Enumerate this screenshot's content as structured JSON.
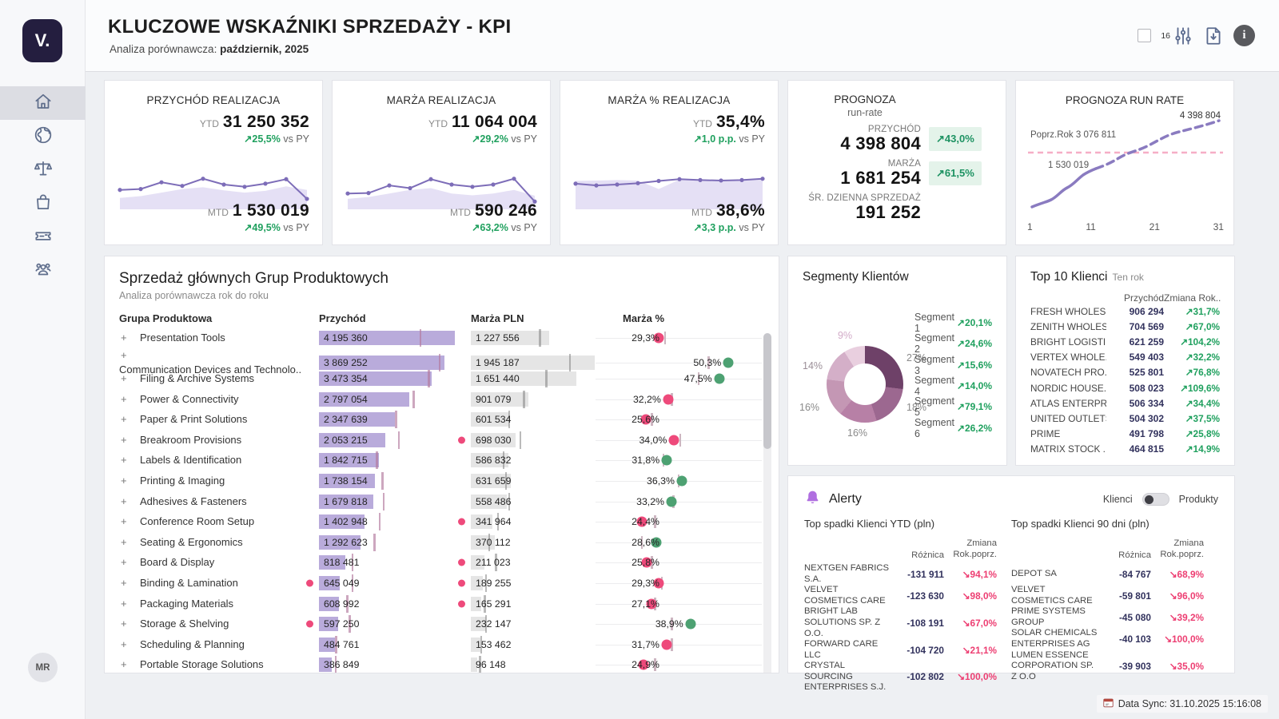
{
  "header": {
    "title": "KLUCZOWE WSKAŹNIKI SPRZEDAŻY - KPI",
    "subtitle_prefix": "Analiza porównawcza: ",
    "subtitle_value": "październik, 2025",
    "filter_badge": "16"
  },
  "sidebar": {
    "logo_text": "V.",
    "avatar_initials": "MR"
  },
  "kpi_cards": [
    {
      "title": "PRZYCHÓD REALIZACJA",
      "ytd_label": "YTD",
      "ytd_value": "31 250 352",
      "ytd_change": "↗25,5%",
      "ytd_vs": "vs PY",
      "mtd_label": "MTD",
      "mtd_value": "1 530 019",
      "mtd_change": "↗49,5%",
      "mtd_vs": "vs PY",
      "spark_line": [
        38,
        40,
        55,
        47,
        63,
        50,
        45,
        52,
        62,
        18
      ],
      "spark_area": [
        20,
        24,
        32,
        40,
        44,
        37,
        32,
        36,
        46,
        38
      ]
    },
    {
      "title": "MARŻA REALIZACJA",
      "ytd_label": "YTD",
      "ytd_value": "11 064 004",
      "ytd_change": "↗29,2%",
      "ytd_vs": "vs PY",
      "mtd_label": "MTD",
      "mtd_value": "590 246",
      "mtd_change": "↗63,2%",
      "mtd_vs": "vs PY",
      "spark_line": [
        30,
        31,
        48,
        42,
        62,
        50,
        45,
        50,
        63,
        12
      ],
      "spark_area": [
        18,
        22,
        30,
        38,
        42,
        30,
        26,
        30,
        38,
        25
      ]
    },
    {
      "title": "MARŻA % REALIZACJA",
      "ytd_label": "YTD",
      "ytd_value": "35,4%",
      "ytd_change": "↗1,0 p.p.",
      "ytd_vs": "vs PY",
      "mtd_label": "MTD",
      "mtd_value": "38,6%",
      "mtd_change": "↗3,3 p.p.",
      "mtd_vs": "vs PY",
      "spark_line": [
        52,
        48,
        50,
        53,
        58,
        62,
        60,
        59,
        60,
        63
      ],
      "spark_area": [
        58,
        59,
        60,
        59,
        40,
        61,
        59,
        58,
        59,
        61
      ]
    }
  ],
  "forecast": {
    "title": "PROGNOZA",
    "subtitle": "run-rate",
    "rows": [
      {
        "label": "PRZYCHÓD",
        "value": "4 398 804",
        "badge": "↗43,0%"
      },
      {
        "label": "MARŻA",
        "value": "1 681 254",
        "badge": "↗61,5%"
      },
      {
        "label": "ŚR. DZIENNA SPRZEDAŻ",
        "value": "191 252",
        "badge": null
      }
    ]
  },
  "runrate": {
    "title": "PROGNOZA RUN RATE",
    "prev_year_label": "Poprz.Rok 3 076 811",
    "current_label": "1 530 019",
    "forecast_label": "4 398 804",
    "x_ticks": [
      "1",
      "11",
      "21",
      "31"
    ]
  },
  "product_table": {
    "title": "Sprzedaż głównych Grup Produktowych",
    "subtitle": "Analiza porównawcza rok do roku",
    "columns": [
      "Grupa Produktowa",
      "Przychód",
      "Marża PLN",
      "Marża %"
    ],
    "max_revenue": 4195360,
    "max_margin": 1945187,
    "pct_min": 20,
    "pct_max": 56,
    "rows": [
      {
        "name": "Presentation Tools",
        "revenue": "4 195 360",
        "rev_py": 0.74,
        "margin": "1 227 556",
        "mar_py": 0.55,
        "pct": "29,3%",
        "pct_val": 29.3,
        "pct_py": 31,
        "pct_color": "pink"
      },
      {
        "name": "Communication Devices and Technolo..",
        "revenue": "3 869 252",
        "rev_py": 0.88,
        "margin": "1 945 187",
        "mar_py": 0.79,
        "pct": "50,3%",
        "pct_val": 50.3,
        "pct_py": 44,
        "pct_color": "green"
      },
      {
        "name": "Filing & Archive Systems",
        "revenue": "3 473 354",
        "rev_py": 0.8,
        "margin": "1 651 440",
        "mar_py": 0.6,
        "pct": "47,5%",
        "pct_val": 47.5,
        "pct_py": 41,
        "pct_color": "green"
      },
      {
        "name": "Power & Connectivity",
        "revenue": "2 797 054",
        "rev_py": 0.69,
        "margin": "901 079",
        "mar_py": 0.42,
        "pct": "32,2%",
        "pct_val": 32.2,
        "pct_py": 33,
        "pct_color": "pink"
      },
      {
        "name": "Paper & Print Solutions",
        "revenue": "2 347 639",
        "rev_py": 0.56,
        "margin": "601 534",
        "mar_py": 0.3,
        "pct": "25,6%",
        "pct_val": 25.6,
        "pct_py": 27,
        "pct_color": "pink"
      },
      {
        "name": "Breakroom Provisions",
        "revenue": "2 053 215",
        "rev_py": 0.58,
        "margin": "698 030",
        "mar_alert": true,
        "mar_py": 0.39,
        "pct": "34,0%",
        "pct_val": 34.0,
        "pct_py": 35.5,
        "pct_color": "pink"
      },
      {
        "name": "Labels & Identification",
        "revenue": "1 842 715",
        "rev_py": 0.42,
        "margin": "586 832",
        "mar_py": 0.255,
        "pct": "31,8%",
        "pct_val": 31.8,
        "pct_py": 30.5,
        "pct_color": "green"
      },
      {
        "name": "Printing & Imaging",
        "revenue": "1 738 154",
        "rev_py": 0.46,
        "margin": "631 659",
        "mar_py": 0.275,
        "pct": "36,3%",
        "pct_val": 36.3,
        "pct_py": 35,
        "pct_color": "green"
      },
      {
        "name": "Adhesives & Fasteners",
        "revenue": "1 679 818",
        "rev_py": 0.47,
        "margin": "558 486",
        "mar_py": 0.3,
        "pct": "33,2%",
        "pct_val": 33.2,
        "pct_py": 33.5,
        "pct_color": "green"
      },
      {
        "name": "Conference Room Setup",
        "revenue": "1 402 948",
        "rev_py": 0.44,
        "margin": "341 964",
        "mar_alert": true,
        "mar_py": 0.21,
        "pct": "24,4%",
        "pct_val": 24.4,
        "pct_py": 28,
        "pct_color": "pink"
      },
      {
        "name": "Seating & Ergonomics",
        "revenue": "1 292 623",
        "rev_py": 0.4,
        "margin": "370 112",
        "mar_py": 0.14,
        "pct": "28,6%",
        "pct_val": 28.6,
        "pct_py": 24,
        "pct_color": "green"
      },
      {
        "name": "Board & Display",
        "revenue": "818 481",
        "rev_py": 0.24,
        "margin": "211 023",
        "mar_alert": true,
        "mar_py": 0.195,
        "pct": "25,8%",
        "pct_val": 25.8,
        "pct_py": 27,
        "pct_color": "pink"
      },
      {
        "name": "Binding & Lamination",
        "revenue": "645 049",
        "rev_alert": true,
        "rev_py": 0.24,
        "margin": "189 255",
        "mar_alert": true,
        "mar_py": 0.115,
        "pct": "29,3%",
        "pct_val": 29.3,
        "pct_py": 30,
        "pct_color": "pink"
      },
      {
        "name": "Packaging Materials",
        "revenue": "608 992",
        "rev_py": 0.2,
        "margin": "165 291",
        "mar_alert": true,
        "mar_py": 0.105,
        "pct": "27,1%",
        "pct_val": 27.1,
        "pct_py": 28,
        "pct_color": "pink"
      },
      {
        "name": "Storage & Shelving",
        "revenue": "597 250",
        "rev_alert": true,
        "rev_py": 0.22,
        "margin": "232 147",
        "mar_py": 0.115,
        "pct": "38,9%",
        "pct_val": 38.9,
        "pct_py": 33,
        "pct_color": "green"
      },
      {
        "name": "Scheduling & Planning",
        "revenue": "484 761",
        "rev_py": 0.12,
        "margin": "153 462",
        "mar_py": 0.075,
        "pct": "31,7%",
        "pct_val": 31.7,
        "pct_py": 33,
        "pct_color": "pink"
      },
      {
        "name": "Portable Storage Solutions",
        "revenue": "386 849",
        "rev_py": 0.115,
        "margin": "96 148",
        "mar_py": 0.065,
        "pct": "24,9%",
        "pct_val": 24.9,
        "pct_py": 28,
        "pct_color": "pink"
      }
    ]
  },
  "segments": {
    "title": "Segmenty Klientów",
    "slices": [
      {
        "label": "27%",
        "value": 27,
        "color": "#6e4168",
        "label_color": "#8a8a8a"
      },
      {
        "label": "18%",
        "value": 18,
        "color": "#9c6890",
        "label_color": "#8a8a8a"
      },
      {
        "label": "16%",
        "value": 16,
        "color": "#b780a6",
        "label_color": "#8a8a8a"
      },
      {
        "label": "16%",
        "value": 16,
        "color": "#c497b4",
        "label_color": "#8a8a8a"
      },
      {
        "label": "14%",
        "value": 14,
        "color": "#d4afc8",
        "label_color": "#9c8f98"
      },
      {
        "label": "9%",
        "value": 9,
        "color": "#e9cfdf",
        "label_color": "#d2abc8"
      }
    ],
    "legend": [
      {
        "label": "Segment 1",
        "change": "↗20,1%"
      },
      {
        "label": "Segment 2",
        "change": "↗24,6%"
      },
      {
        "label": "Segment 3",
        "change": "↗15,6%"
      },
      {
        "label": "Segment 4",
        "change": "↗14,0%"
      },
      {
        "label": "Segment 5",
        "change": "↗79,1%"
      },
      {
        "label": "Segment 6",
        "change": "↗26,2%"
      }
    ]
  },
  "top10": {
    "title": "Top 10 Klienci",
    "subtitle": "Ten rok",
    "col_value": "Przychód",
    "col_change": "Zmiana Rok..",
    "rows": [
      {
        "name": "FRESH WHOLES..",
        "value": "906 294",
        "change": "↗31,7%"
      },
      {
        "name": "ZENITH WHOLES..",
        "value": "704 569",
        "change": "↗67,0%"
      },
      {
        "name": "BRIGHT LOGISTI..",
        "value": "621 259",
        "change": "↗104,2%"
      },
      {
        "name": "VERTEX WHOLE..",
        "value": "549 403",
        "change": "↗32,2%"
      },
      {
        "name": "NOVATECH PRO..",
        "value": "525 801",
        "change": "↗76,8%"
      },
      {
        "name": "NORDIC HOUSE..",
        "value": "508 023",
        "change": "↗109,6%"
      },
      {
        "name": "ATLAS ENTERPR..",
        "value": "506 334",
        "change": "↗34,4%"
      },
      {
        "name": "UNITED OUTLETS",
        "value": "504 302",
        "change": "↗37,5%"
      },
      {
        "name": "PRIME",
        "value": "491 798",
        "change": "↗25,8%"
      },
      {
        "name": "MATRIX STOCK ..",
        "value": "464 815",
        "change": "↗14,9%"
      }
    ]
  },
  "alerts": {
    "title": "Alerty",
    "toggle_left": "Klienci",
    "toggle_right": "Produkty",
    "col_value": "Różnica",
    "col_change_line1": "Zmiana",
    "col_change_line2": "Rok.poprz.",
    "tables": [
      {
        "subtitle": "Top spadki Klienci YTD (pln)",
        "rows": [
          {
            "name": "NEXTGEN FABRICS S.A.",
            "value": "-131 911",
            "change": "↘94,1%"
          },
          {
            "name": "VELVET COSMETICS CARE",
            "value": "-123 630",
            "change": "↘98,0%"
          },
          {
            "name": "BRIGHT LAB SOLUTIONS SP. Z O.O.",
            "value": "-108 191",
            "change": "↘67,0%"
          },
          {
            "name": "FORWARD CARE LLC",
            "value": "-104 720",
            "change": "↘21,1%"
          },
          {
            "name": "CRYSTAL SOURCING ENTERPRISES S.J.",
            "value": "-102 802",
            "change": "↘100,0%"
          }
        ]
      },
      {
        "subtitle": "Top spadki Klienci 90 dni (pln)",
        "rows": [
          {
            "name": "DEPOT SA",
            "value": "-84 767",
            "change": "↘68,9%"
          },
          {
            "name": "VELVET COSMETICS CARE",
            "value": "-59 801",
            "change": "↘96,0%"
          },
          {
            "name": "PRIME SYSTEMS GROUP",
            "value": "-45 080",
            "change": "↘39,2%"
          },
          {
            "name": "SOLAR CHEMICALS ENTERPRISES AG",
            "value": "-40 103",
            "change": "↘100,0%"
          },
          {
            "name": "LUMEN ESSENCE CORPORATION SP. Z O.O",
            "value": "-39 903",
            "change": "↘35,0%"
          }
        ]
      }
    ]
  },
  "footer": {
    "sync_text": "Data Sync: 31.10.2025 15:16:08"
  }
}
